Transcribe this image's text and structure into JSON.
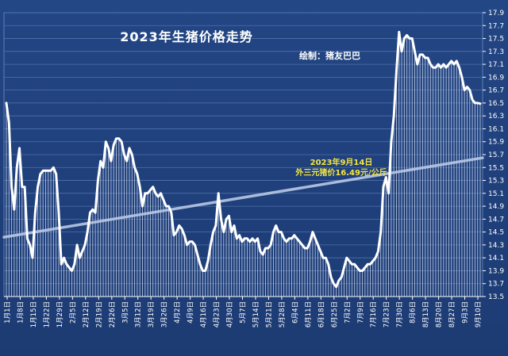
{
  "chart_data": {
    "type": "area",
    "title": "2023年生猪价格走势",
    "subtitle": "绘制：猪友巴巴",
    "annotation": {
      "line1": "2023年9月14日",
      "line2": "外三元猪价16.49元/公斤"
    },
    "ylim": [
      13.5,
      17.9
    ],
    "yticks": [
      13.5,
      13.7,
      13.9,
      14.1,
      14.3,
      14.5,
      14.7,
      14.9,
      15.1,
      15.3,
      15.5,
      15.7,
      15.9,
      16.1,
      16.3,
      16.5,
      16.7,
      16.9,
      17.1,
      17.3,
      17.5,
      17.7,
      17.9
    ],
    "xlabels": [
      "1月1日",
      "1月8日",
      "1月15日",
      "1月22日",
      "1月29日",
      "2月5日",
      "2月12日",
      "2月19日",
      "2月26日",
      "3月5日",
      "3月12日",
      "3月19日",
      "3月26日",
      "4月2日",
      "4月9日",
      "4月16日",
      "4月23日",
      "4月30日",
      "5月7日",
      "5月14日",
      "5月21日",
      "5月28日",
      "6月4日",
      "6月11日",
      "6月18日",
      "6月25日",
      "7月2日",
      "7月9日",
      "7月16日",
      "7月23日",
      "7月30日",
      "8月6日",
      "8月13日",
      "8月20日",
      "8月27日",
      "9月3日",
      "9月10日"
    ],
    "series": [
      {
        "color": "#ffffff",
        "values": [
          16.5,
          16.2,
          15.2,
          14.85,
          15.5,
          15.8,
          15.2,
          15.2,
          14.4,
          14.3,
          14.1,
          14.8,
          15.2,
          15.4,
          15.45,
          15.45,
          15.45,
          15.45,
          15.5,
          15.4,
          14.8,
          14.0,
          14.1,
          14.0,
          13.95,
          13.9,
          14.0,
          14.3,
          14.1,
          14.2,
          14.3,
          14.5,
          14.8,
          14.85,
          14.8,
          15.3,
          15.6,
          15.5,
          15.9,
          15.8,
          15.6,
          15.85,
          15.95,
          15.95,
          15.9,
          15.7,
          15.6,
          15.8,
          15.7,
          15.5,
          15.4,
          15.2,
          14.9,
          15.1,
          15.1,
          15.15,
          15.2,
          15.1,
          15.05,
          15.1,
          15.0,
          14.9,
          14.9,
          14.8,
          14.45,
          14.5,
          14.6,
          14.55,
          14.45,
          14.3,
          14.35,
          14.35,
          14.3,
          14.15,
          14.0,
          13.9,
          13.9,
          14.05,
          14.3,
          14.5,
          14.6,
          15.1,
          14.7,
          14.5,
          14.7,
          14.75,
          14.5,
          14.6,
          14.4,
          14.45,
          14.35,
          14.4,
          14.4,
          14.35,
          14.4,
          14.35,
          14.4,
          14.2,
          14.15,
          14.25,
          14.25,
          14.3,
          14.5,
          14.6,
          14.5,
          14.5,
          14.4,
          14.35,
          14.4,
          14.4,
          14.45,
          14.4,
          14.35,
          14.3,
          14.25,
          14.25,
          14.35,
          14.5,
          14.4,
          14.3,
          14.2,
          14.1,
          14.1,
          14.0,
          13.8,
          13.7,
          13.65,
          13.75,
          13.8,
          13.95,
          14.1,
          14.05,
          14.0,
          14.0,
          13.95,
          13.9,
          13.9,
          13.95,
          14.0,
          14.0,
          14.05,
          14.1,
          14.2,
          14.5,
          15.2,
          15.35,
          15.1,
          15.9,
          16.3,
          17.0,
          17.6,
          17.3,
          17.5,
          17.55,
          17.5,
          17.5,
          17.3,
          17.1,
          17.25,
          17.25,
          17.2,
          17.2,
          17.1,
          17.05,
          17.05,
          17.1,
          17.05,
          17.1,
          17.05,
          17.1,
          17.15,
          17.1,
          17.15,
          17.05,
          16.9,
          16.7,
          16.75,
          16.7,
          16.55,
          16.5,
          16.5,
          16.49
        ]
      }
    ],
    "trend_line": {
      "start": 14.42,
      "end": 15.65
    }
  }
}
